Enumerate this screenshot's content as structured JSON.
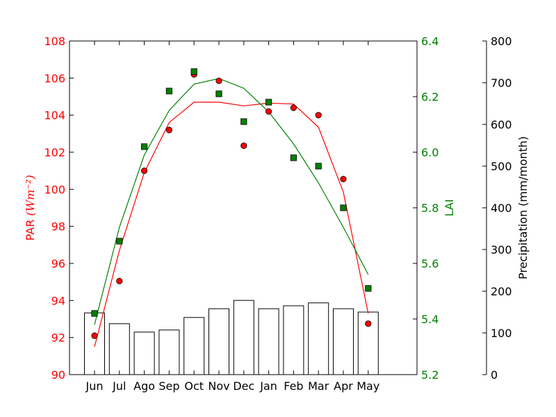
{
  "chart_data": {
    "type": "bar",
    "categories": [
      "Jun",
      "Jul",
      "Ago",
      "Sep",
      "Oct",
      "Nov",
      "Dec",
      "Jan",
      "Feb",
      "Mar",
      "Apr",
      "May"
    ],
    "axes": {
      "par": {
        "label": "PAR",
        "label_math": "(Wm⁻²)",
        "ylim": [
          90,
          108
        ],
        "ticks": [
          90,
          92,
          94,
          96,
          98,
          100,
          102,
          104,
          106,
          108
        ],
        "color": "#ff0000"
      },
      "lai": {
        "label": "LAI",
        "ylim": [
          5.2,
          6.4
        ],
        "ticks": [
          "5.2",
          "5.4",
          "5.6",
          "5.8",
          "6.0",
          "6.2",
          "6.4"
        ],
        "color": "#008000"
      },
      "precip": {
        "label": "Precipitation (mm/month)",
        "ylim": [
          0,
          800
        ],
        "ticks": [
          0,
          100,
          200,
          300,
          400,
          500,
          600,
          700,
          800
        ],
        "color": "#000000"
      }
    },
    "series": [
      {
        "kind": "bar",
        "axis": "precip",
        "color": "#ffffff",
        "values": [
          148,
          122,
          102,
          107,
          137,
          158,
          178,
          158,
          165,
          172,
          158,
          150
        ]
      },
      {
        "kind": "scatter",
        "marker": "circle",
        "axis": "par",
        "color": "#ff0000",
        "values": [
          92.1,
          95.05,
          101.0,
          103.2,
          106.2,
          105.85,
          102.35,
          104.2,
          104.4,
          104.0,
          100.55,
          92.75
        ]
      },
      {
        "kind": "line",
        "axis": "par",
        "color": "#ff0000",
        "values": [
          91.5,
          96.7,
          100.9,
          103.6,
          104.7,
          104.7,
          104.5,
          104.65,
          104.6,
          103.35,
          99.85,
          93.3
        ]
      },
      {
        "kind": "scatter",
        "marker": "square",
        "axis": "lai",
        "color": "#008000",
        "values": [
          5.42,
          5.68,
          6.02,
          6.22,
          6.29,
          6.21,
          6.11,
          6.18,
          5.98,
          5.95,
          5.8,
          5.51
        ]
      },
      {
        "kind": "line",
        "axis": "lai",
        "color": "#008000",
        "values": [
          5.38,
          5.73,
          5.99,
          6.15,
          6.245,
          6.265,
          6.23,
          6.145,
          6.03,
          5.89,
          5.73,
          5.56
        ]
      }
    ]
  }
}
